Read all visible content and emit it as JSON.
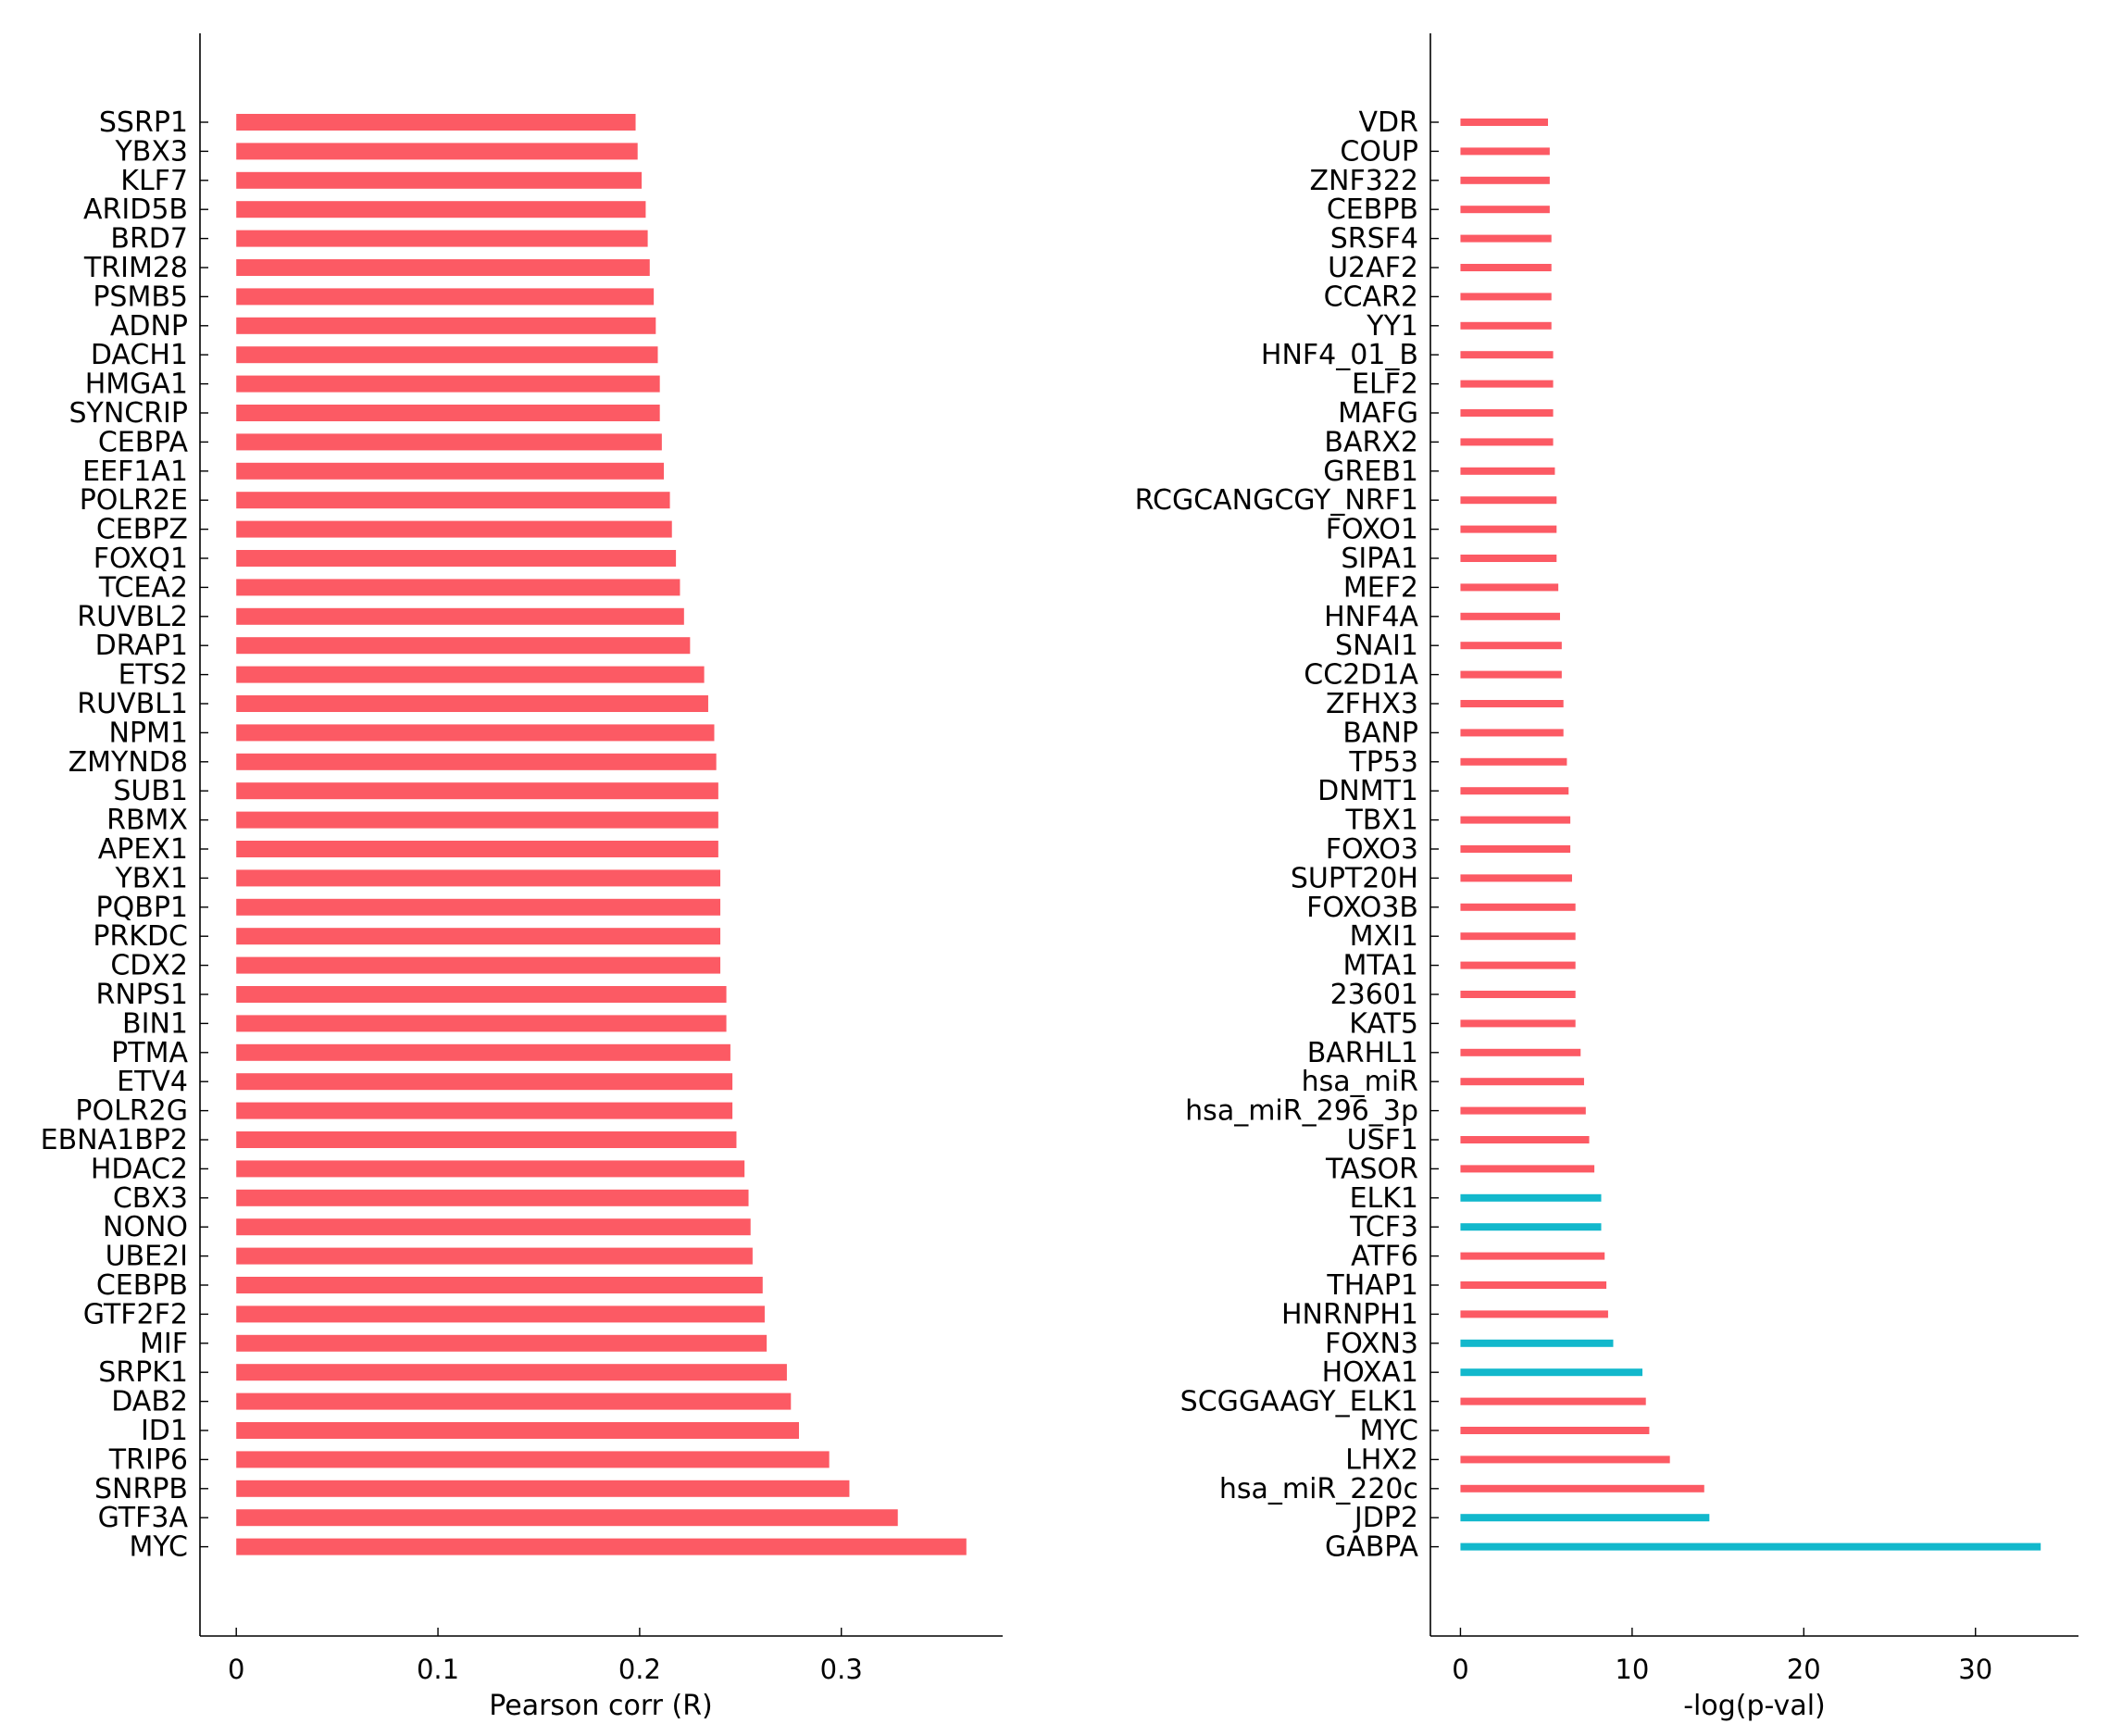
{
  "chart_data": [
    {
      "type": "bar",
      "orientation": "horizontal",
      "title": "",
      "xlabel": "Pearson corr (R)",
      "ylabel": "",
      "xlim": [
        -0.018,
        0.38
      ],
      "xticks": [
        0,
        0.1,
        0.2,
        0.3
      ],
      "xtick_labels": [
        "0",
        "0.1",
        "0.2",
        "0.3"
      ],
      "grid": false,
      "colors": {
        "default": "#fc5a64"
      },
      "categories": [
        "SSRP1",
        "YBX3",
        "KLF7",
        "ARID5B",
        "BRD7",
        "TRIM28",
        "PSMB5",
        "ADNP",
        "DACH1",
        "HMGA1",
        "SYNCRIP",
        "CEBPA",
        "EEF1A1",
        "POLR2E",
        "CEBPZ",
        "FOXQ1",
        "TCEA2",
        "RUVBL2",
        "DRAP1",
        "ETS2",
        "RUVBL1",
        "NPM1",
        "ZMYND8",
        "SUB1",
        "RBMX",
        "APEX1",
        "YBX1",
        "PQBP1",
        "PRKDC",
        "CDX2",
        "RNPS1",
        "BIN1",
        "PTMA",
        "ETV4",
        "POLR2G",
        "EBNA1BP2",
        "HDAC2",
        "CBX3",
        "NONO",
        "UBE2I",
        "CEBPB",
        "GTF2F2",
        "MIF",
        "SRPK1",
        "DAB2",
        "ID1",
        "TRIP6",
        "SNRPB",
        "GTF3A",
        "MYC"
      ],
      "values": [
        0.198,
        0.199,
        0.201,
        0.203,
        0.204,
        0.205,
        0.207,
        0.208,
        0.209,
        0.21,
        0.21,
        0.211,
        0.212,
        0.215,
        0.216,
        0.218,
        0.22,
        0.222,
        0.225,
        0.232,
        0.234,
        0.237,
        0.238,
        0.239,
        0.239,
        0.239,
        0.24,
        0.24,
        0.24,
        0.24,
        0.243,
        0.243,
        0.245,
        0.246,
        0.246,
        0.248,
        0.252,
        0.254,
        0.255,
        0.256,
        0.261,
        0.262,
        0.263,
        0.273,
        0.275,
        0.279,
        0.294,
        0.304,
        0.328,
        0.362
      ],
      "highlighted": []
    },
    {
      "type": "bar",
      "orientation": "horizontal",
      "title": "",
      "xlabel": "-log(p-val)",
      "ylabel": "",
      "xlim": [
        -1.75,
        36.0
      ],
      "xticks": [
        0,
        10,
        20,
        30
      ],
      "xtick_labels": [
        "0",
        "10",
        "20",
        "30"
      ],
      "grid": false,
      "colors": {
        "default": "#fc5a64",
        "highlight": "#12b8cc"
      },
      "categories": [
        "VDR",
        "COUP",
        "ZNF322",
        "CEBPB",
        "SRSF4",
        "U2AF2",
        "CCAR2",
        "YY1",
        "HNF4_01_B",
        "ELF2",
        "MAFG",
        "BARX2",
        "GREB1",
        "RCGCANGCGY_NRF1",
        "FOXO1",
        "SIPA1",
        "MEF2",
        "HNF4A",
        "SNAI1",
        "CC2D1A",
        "ZFHX3",
        "BANP",
        "TP53",
        "DNMT1",
        "TBX1",
        "FOXO3",
        "SUPT20H",
        "FOXO3B",
        "MXI1",
        "MTA1",
        "23601",
        "KAT5",
        "BARHL1",
        "hsa_miR",
        "hsa_miR_296_3p",
        "USF1",
        "TASOR",
        "ELK1",
        "TCF3",
        "ATF6",
        "THAP1",
        "HNRNPH1",
        "FOXN3",
        "HOXA1",
        "SCGGAAGY_ELK1",
        "MYC",
        "LHX2",
        "hsa_miR_220c",
        "JDP2",
        "GABPA"
      ],
      "values": [
        5.1,
        5.2,
        5.2,
        5.2,
        5.3,
        5.3,
        5.3,
        5.3,
        5.4,
        5.4,
        5.4,
        5.4,
        5.5,
        5.6,
        5.6,
        5.6,
        5.7,
        5.8,
        5.9,
        5.9,
        6.0,
        6.0,
        6.2,
        6.3,
        6.4,
        6.4,
        6.5,
        6.7,
        6.7,
        6.7,
        6.7,
        6.7,
        7.0,
        7.2,
        7.3,
        7.5,
        7.8,
        8.2,
        8.2,
        8.4,
        8.5,
        8.6,
        8.9,
        10.6,
        10.8,
        11.0,
        12.2,
        14.2,
        14.5,
        33.8
      ],
      "highlighted": [
        "ELK1",
        "TCF3",
        "FOXN3",
        "HOXA1",
        "JDP2",
        "GABPA"
      ]
    }
  ]
}
